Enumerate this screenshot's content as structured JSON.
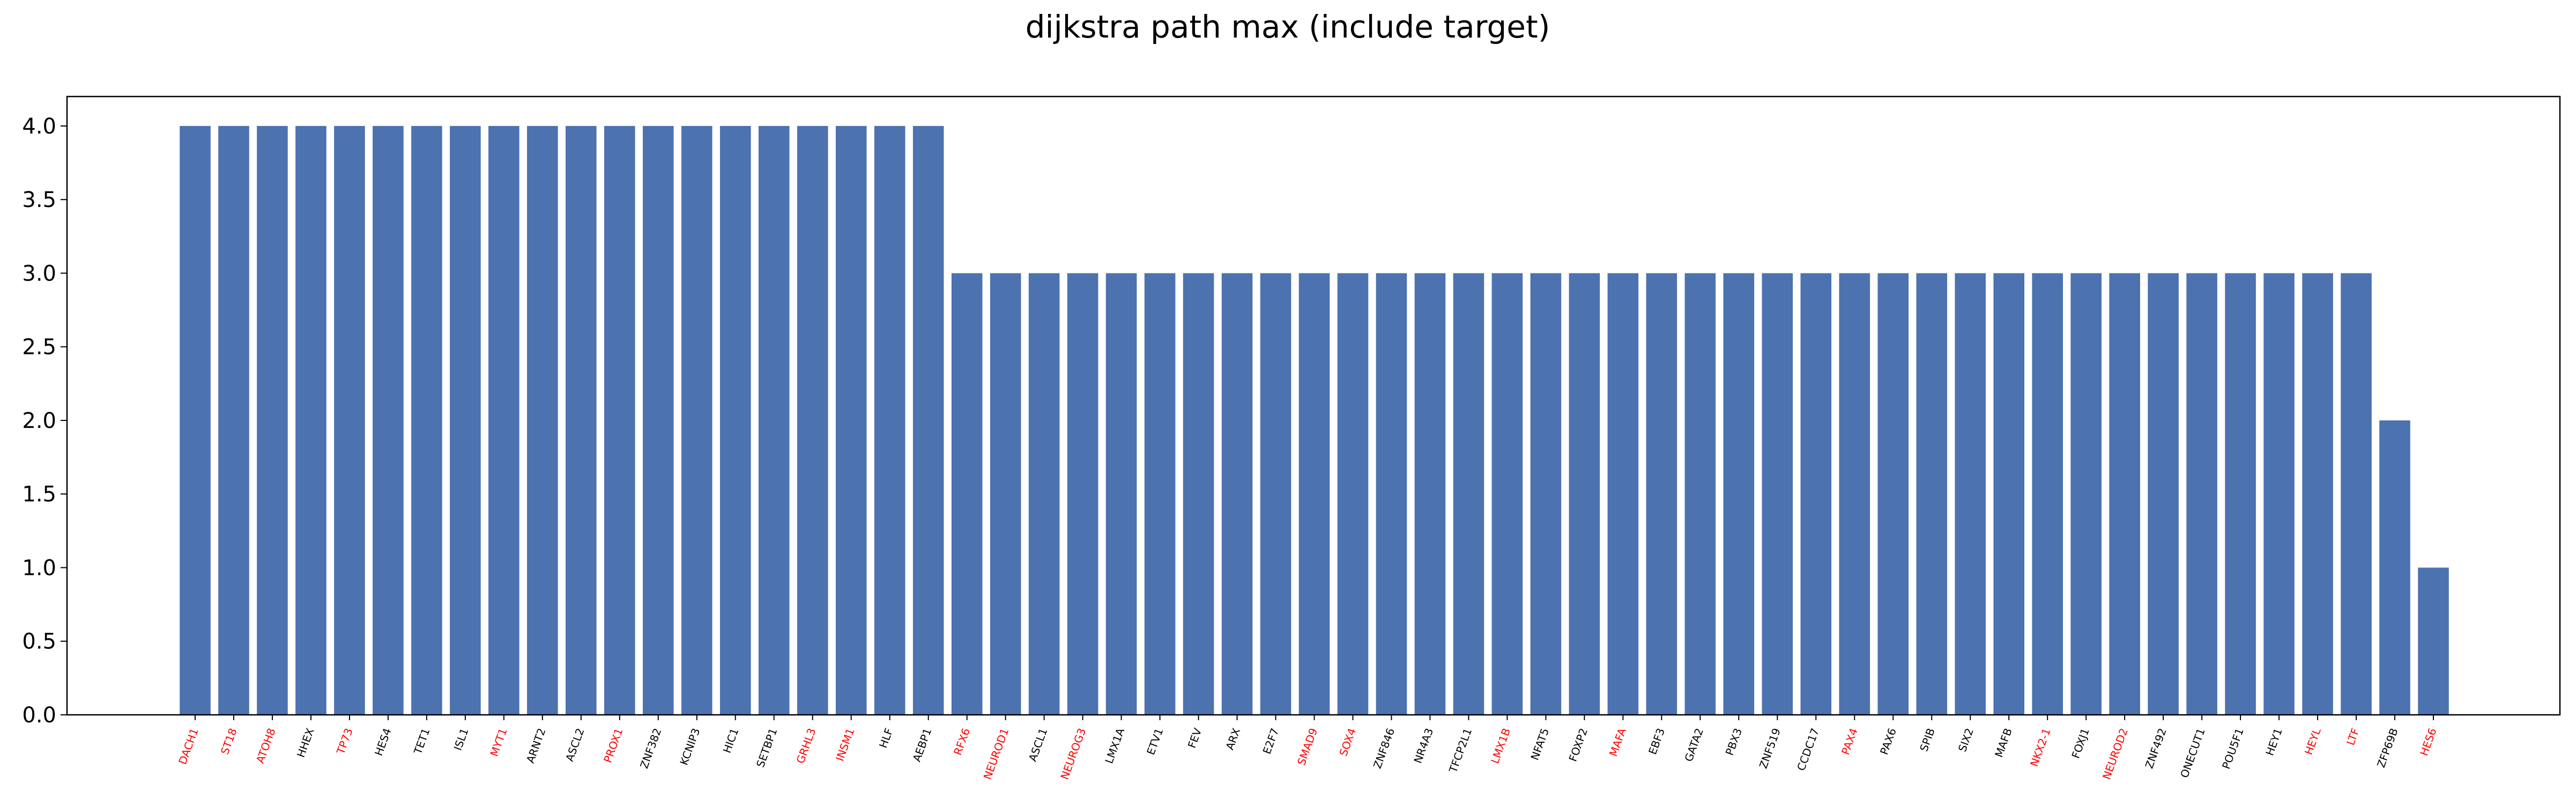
{
  "chart_data": {
    "type": "bar",
    "title": "dijkstra path max (include target)",
    "xlabel": "",
    "ylabel": "",
    "ylim": [
      0,
      4.2
    ],
    "yticks": [
      "0.0",
      "0.5",
      "1.0",
      "1.5",
      "2.0",
      "2.5",
      "3.0",
      "3.5",
      "4.0"
    ],
    "grid": false,
    "bar_color": "#4c72b0",
    "label_color_default": "#000000",
    "label_color_highlight": "#ff0000",
    "categories": [
      "DACH1",
      "ST18",
      "ATOH8",
      "HHEX",
      "TP73",
      "HES4",
      "TET1",
      "ISL1",
      "MYT1",
      "ARNT2",
      "ASCL2",
      "PROX1",
      "ZNF382",
      "KCNIP3",
      "HIC1",
      "SETBP1",
      "GRHL3",
      "INSM1",
      "HLF",
      "AEBP1",
      "RFX6",
      "NEUROD1",
      "ASCL1",
      "NEUROG3",
      "LMX1A",
      "ETV1",
      "FEV",
      "ARX",
      "E2F7",
      "SMAD9",
      "SOX4",
      "ZNF846",
      "NR4A3",
      "TFCP2L1",
      "LMX1B",
      "NFAT5",
      "FOXP2",
      "MAFA",
      "EBF3",
      "GATA2",
      "PBX3",
      "ZNF519",
      "CCDC17",
      "PAX4",
      "PAX6",
      "SPIB",
      "SIX2",
      "MAFB",
      "NKX2-1",
      "FOXJ1",
      "NEUROD2",
      "ZNF492",
      "ONECUT1",
      "POU5F1",
      "HEY1",
      "HEYL",
      "LTF",
      "ZFP69B",
      "HES6"
    ],
    "values": [
      4,
      4,
      4,
      4,
      4,
      4,
      4,
      4,
      4,
      4,
      4,
      4,
      4,
      4,
      4,
      4,
      4,
      4,
      4,
      4,
      3,
      3,
      3,
      3,
      3,
      3,
      3,
      3,
      3,
      3,
      3,
      3,
      3,
      3,
      3,
      3,
      3,
      3,
      3,
      3,
      3,
      3,
      3,
      3,
      3,
      3,
      3,
      3,
      3,
      3,
      3,
      3,
      3,
      3,
      3,
      3,
      3,
      2,
      1
    ],
    "highlighted": [
      "DACH1",
      "ST18",
      "ATOH8",
      "TP73",
      "MYT1",
      "PROX1",
      "GRHL3",
      "INSM1",
      "RFX6",
      "NEUROD1",
      "NEUROG3",
      "SMAD9",
      "SOX4",
      "LMX1B",
      "MAFA",
      "PAX4",
      "NKX2-1",
      "NEUROD2",
      "HEYL",
      "LTF",
      "HES6"
    ]
  }
}
